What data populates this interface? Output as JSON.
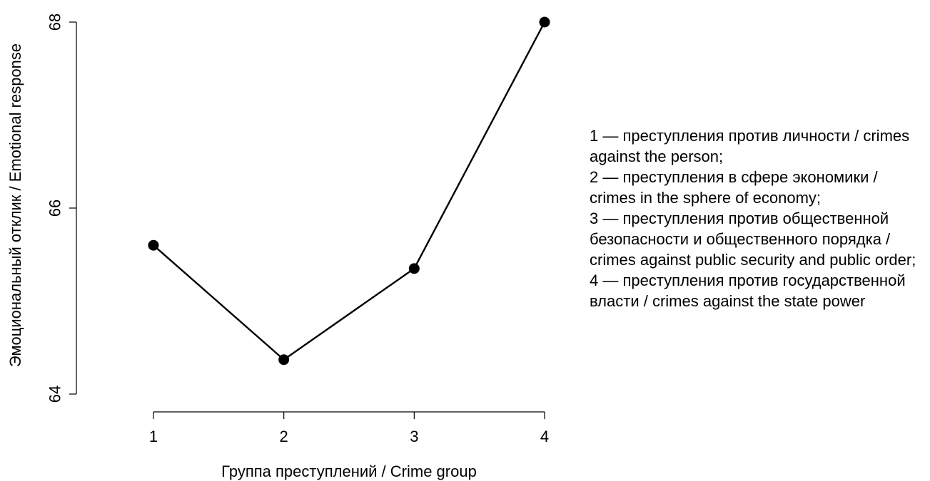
{
  "chart_data": {
    "type": "line",
    "xlabel": "Группа преступлений / Crime group",
    "ylabel": "Эмоциональный отклик / Emotional response",
    "x": [
      1,
      2,
      3,
      4
    ],
    "x_ticks": [
      "1",
      "2",
      "3",
      "4"
    ],
    "y_ticks": [
      "64",
      "66",
      "68"
    ],
    "ylim": [
      64,
      68
    ],
    "series": [
      {
        "values": [
          65.6,
          64.37,
          65.35,
          68.0
        ]
      }
    ],
    "grid": false,
    "legend": "none"
  },
  "notes": [
    "1 — преступления против личности / crimes against the person;",
    "2 — преступления в сфере экономики / crimes in the sphere of economy;",
    "3 — преступления против общественной безопасности и общественного порядка / crimes against public security and public order;",
    "4 — преступления против государственной власти / crimes against the state power"
  ]
}
